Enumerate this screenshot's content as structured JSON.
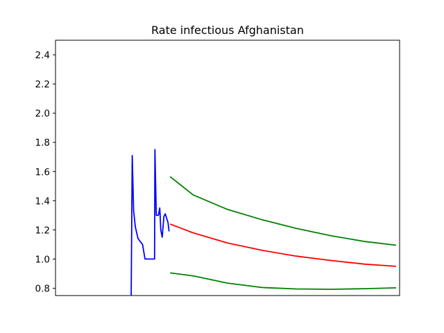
{
  "chart_data": {
    "type": "line",
    "title": "Rate infectious Afghanistan",
    "xlabel": "",
    "ylabel": "",
    "ylim": [
      0.75,
      2.5
    ],
    "xlim": [
      0,
      100
    ],
    "yticks": [
      0.8,
      1.0,
      1.2,
      1.4,
      1.6,
      1.8,
      2.0,
      2.2,
      2.4
    ],
    "ytick_labels": [
      "0.8",
      "1.0",
      "1.2",
      "1.4",
      "1.6",
      "1.8",
      "2.0",
      "2.2",
      "2.4"
    ],
    "xticks_shown": false,
    "grid": false,
    "legend": "none",
    "series": [
      {
        "color": "#0000ff",
        "x": [
          22.0,
          22.3,
          22.7,
          23.2,
          24.0,
          25.3,
          26.0,
          27.2,
          28.8,
          28.9,
          29.3,
          29.9,
          30.3,
          30.6,
          31.0,
          31.5,
          31.9,
          32.3,
          32.7,
          33.0
        ],
        "y": [
          0.75,
          1.71,
          1.33,
          1.22,
          1.14,
          1.1,
          1.0,
          1.0,
          1.0,
          1.75,
          1.3,
          1.3,
          1.35,
          1.2,
          1.15,
          1.29,
          1.31,
          1.28,
          1.25,
          1.19
        ]
      },
      {
        "color": "#ff0000",
        "x": [
          33.3,
          40,
          50,
          60,
          70,
          80,
          90,
          99
        ],
        "y": [
          1.24,
          1.18,
          1.11,
          1.06,
          1.02,
          0.99,
          0.965,
          0.95
        ]
      },
      {
        "color": "#008000",
        "x": [
          33.3,
          40,
          50,
          60,
          70,
          80,
          90,
          99
        ],
        "y": [
          1.565,
          1.44,
          1.34,
          1.27,
          1.21,
          1.16,
          1.12,
          1.095
        ]
      },
      {
        "color": "#008000",
        "x": [
          33.3,
          40,
          50,
          60,
          70,
          80,
          90,
          99
        ],
        "y": [
          0.905,
          0.885,
          0.835,
          0.805,
          0.795,
          0.793,
          0.797,
          0.803
        ]
      }
    ]
  }
}
